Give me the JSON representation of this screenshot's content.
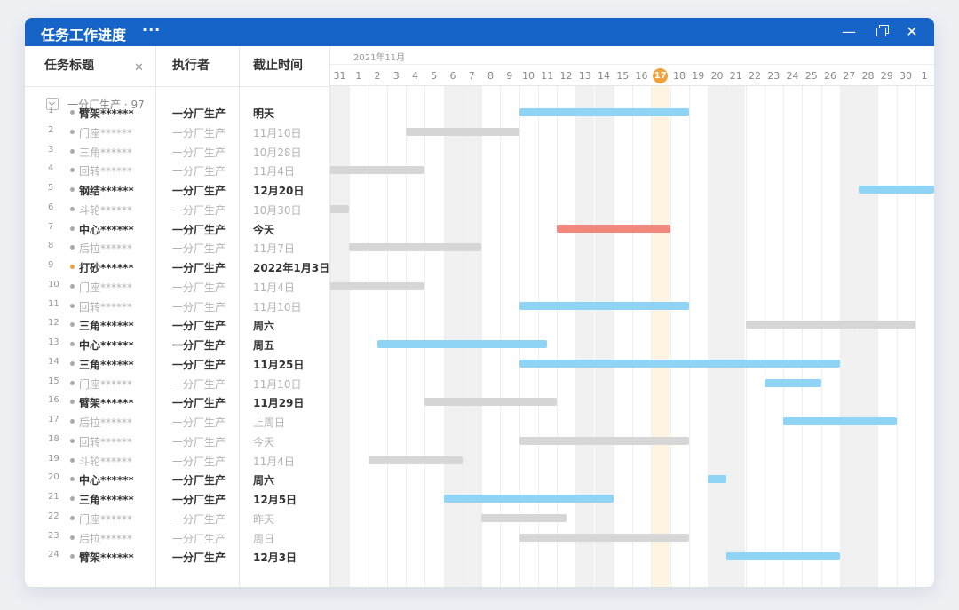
{
  "window": {
    "title": "任务工作进度",
    "more_icon": "···",
    "minimize_icon": "—",
    "close_icon": "✕"
  },
  "columns": {
    "title": "任务标题",
    "assignee": "执行者",
    "deadline": "截止时间",
    "clear_icon": "✕"
  },
  "group": {
    "label": "一分厂生产 · 97"
  },
  "timeline": {
    "month": "2021年11月",
    "days": [
      "31",
      "1",
      "2",
      "3",
      "4",
      "5",
      "6",
      "7",
      "8",
      "9",
      "10",
      "11",
      "12",
      "13",
      "14",
      "15",
      "16",
      "17",
      "18",
      "19",
      "20",
      "21",
      "22",
      "23",
      "24",
      "25",
      "26",
      "27",
      "28",
      "29",
      "30",
      "1"
    ],
    "weekend_indexes": [
      0,
      6,
      7,
      13,
      14,
      20,
      21,
      27,
      28
    ],
    "today_index": 17
  },
  "colors": {
    "accent": "#1664c8",
    "bar_blue": "#8fd3f5",
    "bar_grey": "#d6d6d6",
    "bar_red": "#f2877d",
    "today": "#f1a23a"
  },
  "tasks": [
    {
      "num": "1",
      "title": "臂架******",
      "assignee": "一分厂生产",
      "deadline": "明天",
      "style": "bold",
      "dot": "grey",
      "bar": {
        "start": 10,
        "end": 19,
        "color": "blue"
      }
    },
    {
      "num": "2",
      "title": "门座******",
      "assignee": "一分厂生产",
      "deadline": "11月10日",
      "style": "light",
      "dot": "grey",
      "bar": {
        "start": 4,
        "end": 10,
        "color": "grey"
      }
    },
    {
      "num": "3",
      "title": "三角******",
      "assignee": "一分厂生产",
      "deadline": "10月28日",
      "style": "light",
      "dot": "grey",
      "bar": null
    },
    {
      "num": "4",
      "title": "回转******",
      "assignee": "一分厂生产",
      "deadline": "11月4日",
      "style": "light",
      "dot": "grey",
      "bar": {
        "start": 0,
        "end": 5,
        "color": "grey"
      }
    },
    {
      "num": "5",
      "title": "钢结******",
      "assignee": "一分厂生产",
      "deadline": "12月20日",
      "style": "bold",
      "dot": "grey",
      "bar": {
        "start": 28,
        "end": 32,
        "color": "blue"
      }
    },
    {
      "num": "6",
      "title": "斗轮******",
      "assignee": "一分厂生产",
      "deadline": "10月30日",
      "style": "light",
      "dot": "grey",
      "bar": {
        "start": 0,
        "end": 1,
        "color": "grey"
      }
    },
    {
      "num": "7",
      "title": "中心******",
      "assignee": "一分厂生产",
      "deadline": "今天",
      "style": "bold",
      "dot": "grey",
      "bar": {
        "start": 12,
        "end": 18,
        "color": "red"
      }
    },
    {
      "num": "8",
      "title": "后拉******",
      "assignee": "一分厂生产",
      "deadline": "11月7日",
      "style": "light",
      "dot": "grey",
      "bar": {
        "start": 1,
        "end": 8,
        "color": "grey"
      }
    },
    {
      "num": "9",
      "title": "打砂******",
      "assignee": "一分厂生产",
      "deadline": "2022年1月3日",
      "style": "bold",
      "dot": "orange",
      "bar": null
    },
    {
      "num": "10",
      "title": "门座******",
      "assignee": "一分厂生产",
      "deadline": "11月4日",
      "style": "light",
      "dot": "grey",
      "bar": {
        "start": 0,
        "end": 5,
        "color": "grey"
      }
    },
    {
      "num": "11",
      "title": "回转******",
      "assignee": "一分厂生产",
      "deadline": "11月10日",
      "style": "light",
      "dot": "grey",
      "bar": {
        "start": 10,
        "end": 19,
        "color": "blue"
      }
    },
    {
      "num": "12",
      "title": "三角******",
      "assignee": "一分厂生产",
      "deadline": "周六",
      "style": "bold",
      "dot": "grey",
      "bar": {
        "start": 22,
        "end": 31,
        "color": "grey"
      }
    },
    {
      "num": "13",
      "title": "中心******",
      "assignee": "一分厂生产",
      "deadline": "周五",
      "style": "bold",
      "dot": "grey",
      "bar": {
        "start": 2.5,
        "end": 11.5,
        "color": "blue"
      }
    },
    {
      "num": "14",
      "title": "三角******",
      "assignee": "一分厂生产",
      "deadline": "11月25日",
      "style": "bold",
      "dot": "grey",
      "bar": {
        "start": 10,
        "end": 27,
        "color": "blue"
      }
    },
    {
      "num": "15",
      "title": "门座******",
      "assignee": "一分厂生产",
      "deadline": "11月10日",
      "style": "light",
      "dot": "grey",
      "bar": {
        "start": 23,
        "end": 26,
        "color": "blue"
      }
    },
    {
      "num": "16",
      "title": "臂架******",
      "assignee": "一分厂生产",
      "deadline": "11月29日",
      "style": "bold",
      "dot": "grey",
      "bar": {
        "start": 5,
        "end": 12,
        "color": "grey"
      }
    },
    {
      "num": "17",
      "title": "后拉******",
      "assignee": "一分厂生产",
      "deadline": "上周日",
      "style": "light",
      "dot": "grey",
      "bar": {
        "start": 24,
        "end": 30,
        "color": "blue"
      }
    },
    {
      "num": "18",
      "title": "回转******",
      "assignee": "一分厂生产",
      "deadline": "今天",
      "style": "light",
      "dot": "grey",
      "bar": {
        "start": 10,
        "end": 19,
        "color": "grey"
      }
    },
    {
      "num": "19",
      "title": "斗轮******",
      "assignee": "一分厂生产",
      "deadline": "11月4日",
      "style": "light",
      "dot": "grey",
      "bar": {
        "start": 2,
        "end": 7,
        "color": "grey"
      }
    },
    {
      "num": "20",
      "title": "中心******",
      "assignee": "一分厂生产",
      "deadline": "周六",
      "style": "bold",
      "dot": "grey",
      "bar": {
        "start": 20,
        "end": 21,
        "color": "blue"
      }
    },
    {
      "num": "21",
      "title": "三角******",
      "assignee": "一分厂生产",
      "deadline": "12月5日",
      "style": "bold",
      "dot": "grey",
      "bar": {
        "start": 6,
        "end": 15,
        "color": "blue"
      }
    },
    {
      "num": "22",
      "title": "门座******",
      "assignee": "一分厂生产",
      "deadline": "昨天",
      "style": "light",
      "dot": "grey",
      "bar": {
        "start": 8,
        "end": 12.5,
        "color": "grey"
      }
    },
    {
      "num": "23",
      "title": "后拉******",
      "assignee": "一分厂生产",
      "deadline": "周日",
      "style": "light",
      "dot": "grey",
      "bar": {
        "start": 10,
        "end": 19,
        "color": "grey"
      }
    },
    {
      "num": "24",
      "title": "臂架******",
      "assignee": "一分厂生产",
      "deadline": "12月3日",
      "style": "bold",
      "dot": "grey",
      "bar": {
        "start": 21,
        "end": 27,
        "color": "blue"
      }
    }
  ]
}
